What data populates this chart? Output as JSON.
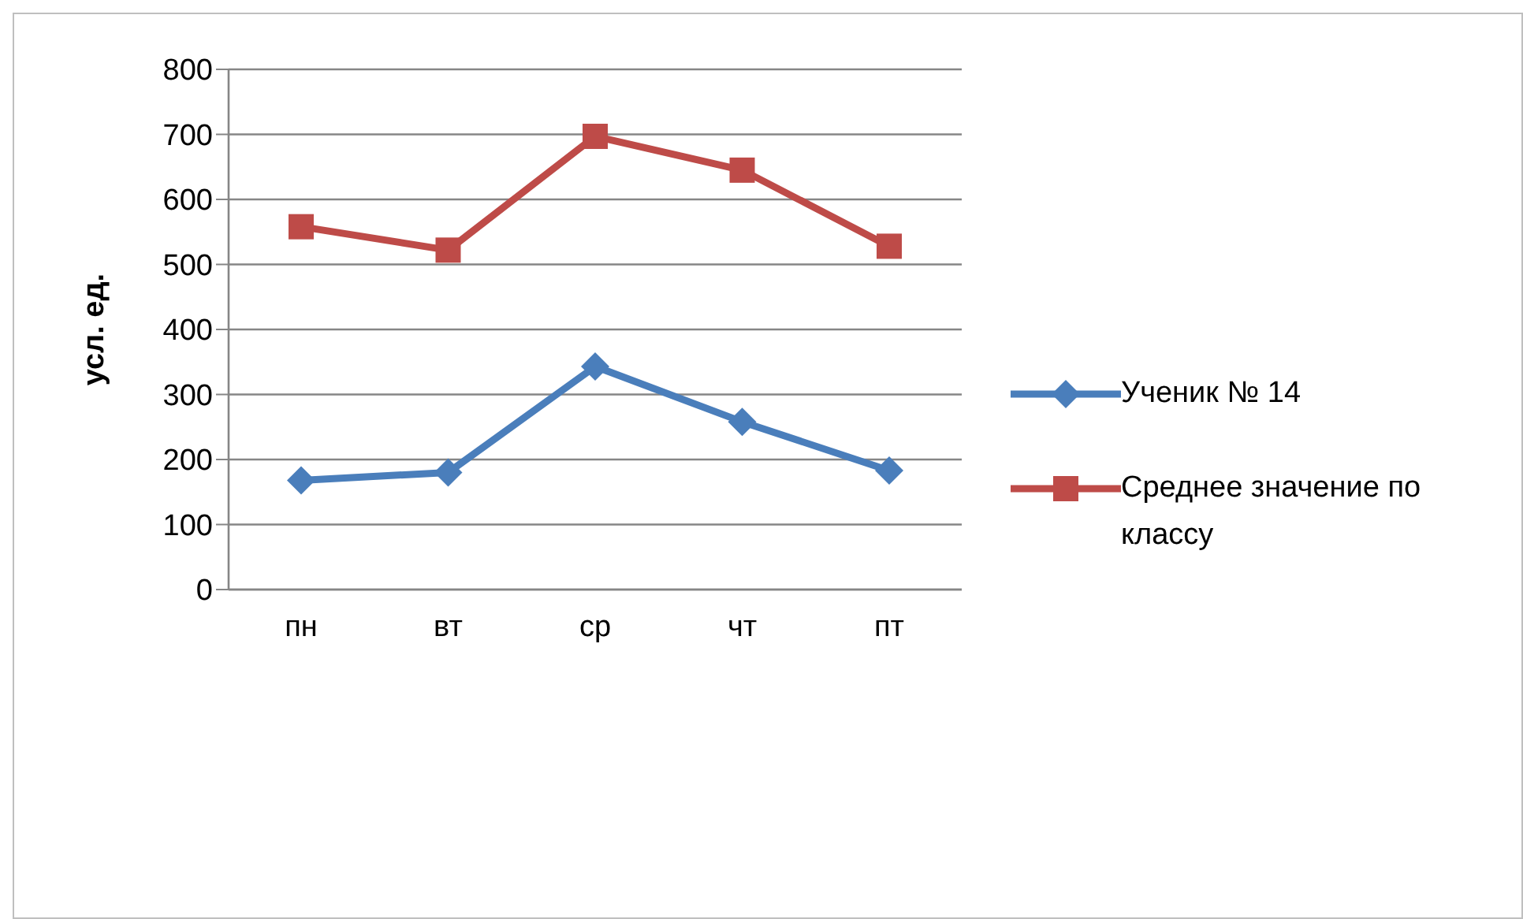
{
  "chart_data": {
    "type": "line",
    "ylabel": "усл. ед.",
    "categories": [
      "пн",
      "вт",
      "ср",
      "чт",
      "пт"
    ],
    "series": [
      {
        "name": "Ученик № 14",
        "color": "#4a7ebb",
        "marker": "diamond",
        "values": [
          168,
          180,
          343,
          258,
          183
        ]
      },
      {
        "name": "Среднее значение по классу",
        "color": "#be4b48",
        "marker": "square",
        "values": [
          558,
          522,
          697,
          645,
          528
        ]
      }
    ],
    "ylim": [
      0,
      800
    ],
    "yticks": [
      0,
      100,
      200,
      300,
      400,
      500,
      600,
      700,
      800
    ],
    "grid": "y",
    "legend": "right",
    "line_style": "solid"
  }
}
